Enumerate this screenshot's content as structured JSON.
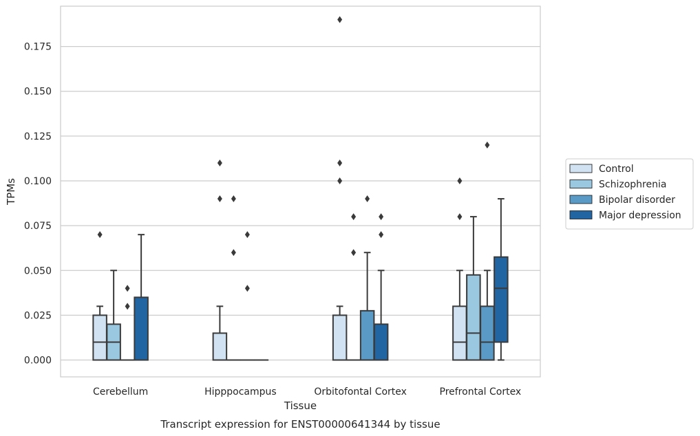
{
  "chart_data": {
    "type": "box",
    "caption": "Transcript expression for ENST00000641344 by tissue",
    "xlabel": "Tissue",
    "ylabel": "TPMs",
    "ylim": [
      -0.0094,
      0.1975
    ],
    "yticks": [
      "0.000",
      "0.025",
      "0.050",
      "0.075",
      "0.100",
      "0.125",
      "0.150",
      "0.175"
    ],
    "ytick_values": [
      0,
      0.025,
      0.05,
      0.075,
      0.1,
      0.125,
      0.15,
      0.175
    ],
    "grid": "horizontal",
    "legend_position": "right",
    "categories": [
      "Cerebellum",
      "Hipppocampus",
      "Orbitofontal Cortex",
      "Prefrontal Cortex"
    ],
    "series": [
      {
        "name": "Control",
        "color": "#d1e2f2",
        "boxes": [
          {
            "q1": 0,
            "median": 0.01,
            "q3": 0.025,
            "whislo": 0,
            "whishi": 0.03,
            "fliers": [
              0.07
            ]
          },
          {
            "q1": 0,
            "median": 0,
            "q3": 0.015,
            "whislo": 0,
            "whishi": 0.03,
            "fliers": [
              0.09,
              0.11
            ]
          },
          {
            "q1": 0,
            "median": 0,
            "q3": 0.025,
            "whislo": 0,
            "whishi": 0.03,
            "fliers": [
              0.1,
              0.11,
              0.19
            ]
          },
          {
            "q1": 0,
            "median": 0.01,
            "q3": 0.03,
            "whislo": 0,
            "whishi": 0.05,
            "fliers": [
              0.08,
              0.1
            ]
          }
        ]
      },
      {
        "name": "Schizophrenia",
        "color": "#9ac8e0",
        "boxes": [
          {
            "q1": 0,
            "median": 0.01,
            "q3": 0.02,
            "whislo": 0,
            "whishi": 0.05,
            "fliers": []
          },
          {
            "q1": 0,
            "median": 0,
            "q3": 0,
            "whislo": 0,
            "whishi": 0,
            "fliers": [
              0.06,
              0.09
            ]
          },
          {
            "q1": 0,
            "median": 0,
            "q3": 0,
            "whislo": 0,
            "whishi": 0,
            "fliers": [
              0.06,
              0.08
            ]
          },
          {
            "q1": 0,
            "median": 0.015,
            "q3": 0.0475,
            "whislo": 0,
            "whishi": 0.08,
            "fliers": []
          }
        ]
      },
      {
        "name": "Bipolar disorder",
        "color": "#5a9ac6",
        "boxes": [
          {
            "q1": 0,
            "median": 0,
            "q3": 0,
            "whislo": 0,
            "whishi": 0,
            "fliers": [
              0.03,
              0.04
            ]
          },
          {
            "q1": 0,
            "median": 0,
            "q3": 0,
            "whislo": 0,
            "whishi": 0,
            "fliers": [
              0.04,
              0.07
            ]
          },
          {
            "q1": 0,
            "median": 0,
            "q3": 0.0275,
            "whislo": 0,
            "whishi": 0.06,
            "fliers": [
              0.09
            ]
          },
          {
            "q1": 0,
            "median": 0.01,
            "q3": 0.03,
            "whislo": 0,
            "whishi": 0.05,
            "fliers": [
              0.12
            ]
          }
        ]
      },
      {
        "name": "Major depression",
        "color": "#2265a3",
        "boxes": [
          {
            "q1": 0,
            "median": 0,
            "q3": 0.035,
            "whislo": 0,
            "whishi": 0.07,
            "fliers": []
          },
          {
            "q1": 0,
            "median": 0,
            "q3": 0,
            "whislo": 0,
            "whishi": 0,
            "fliers": []
          },
          {
            "q1": 0,
            "median": 0,
            "q3": 0.02,
            "whislo": 0,
            "whishi": 0.05,
            "fliers": [
              0.07,
              0.08
            ]
          },
          {
            "q1": 0.01,
            "median": 0.04,
            "q3": 0.0575,
            "whislo": 0,
            "whishi": 0.09,
            "fliers": []
          }
        ]
      }
    ]
  }
}
